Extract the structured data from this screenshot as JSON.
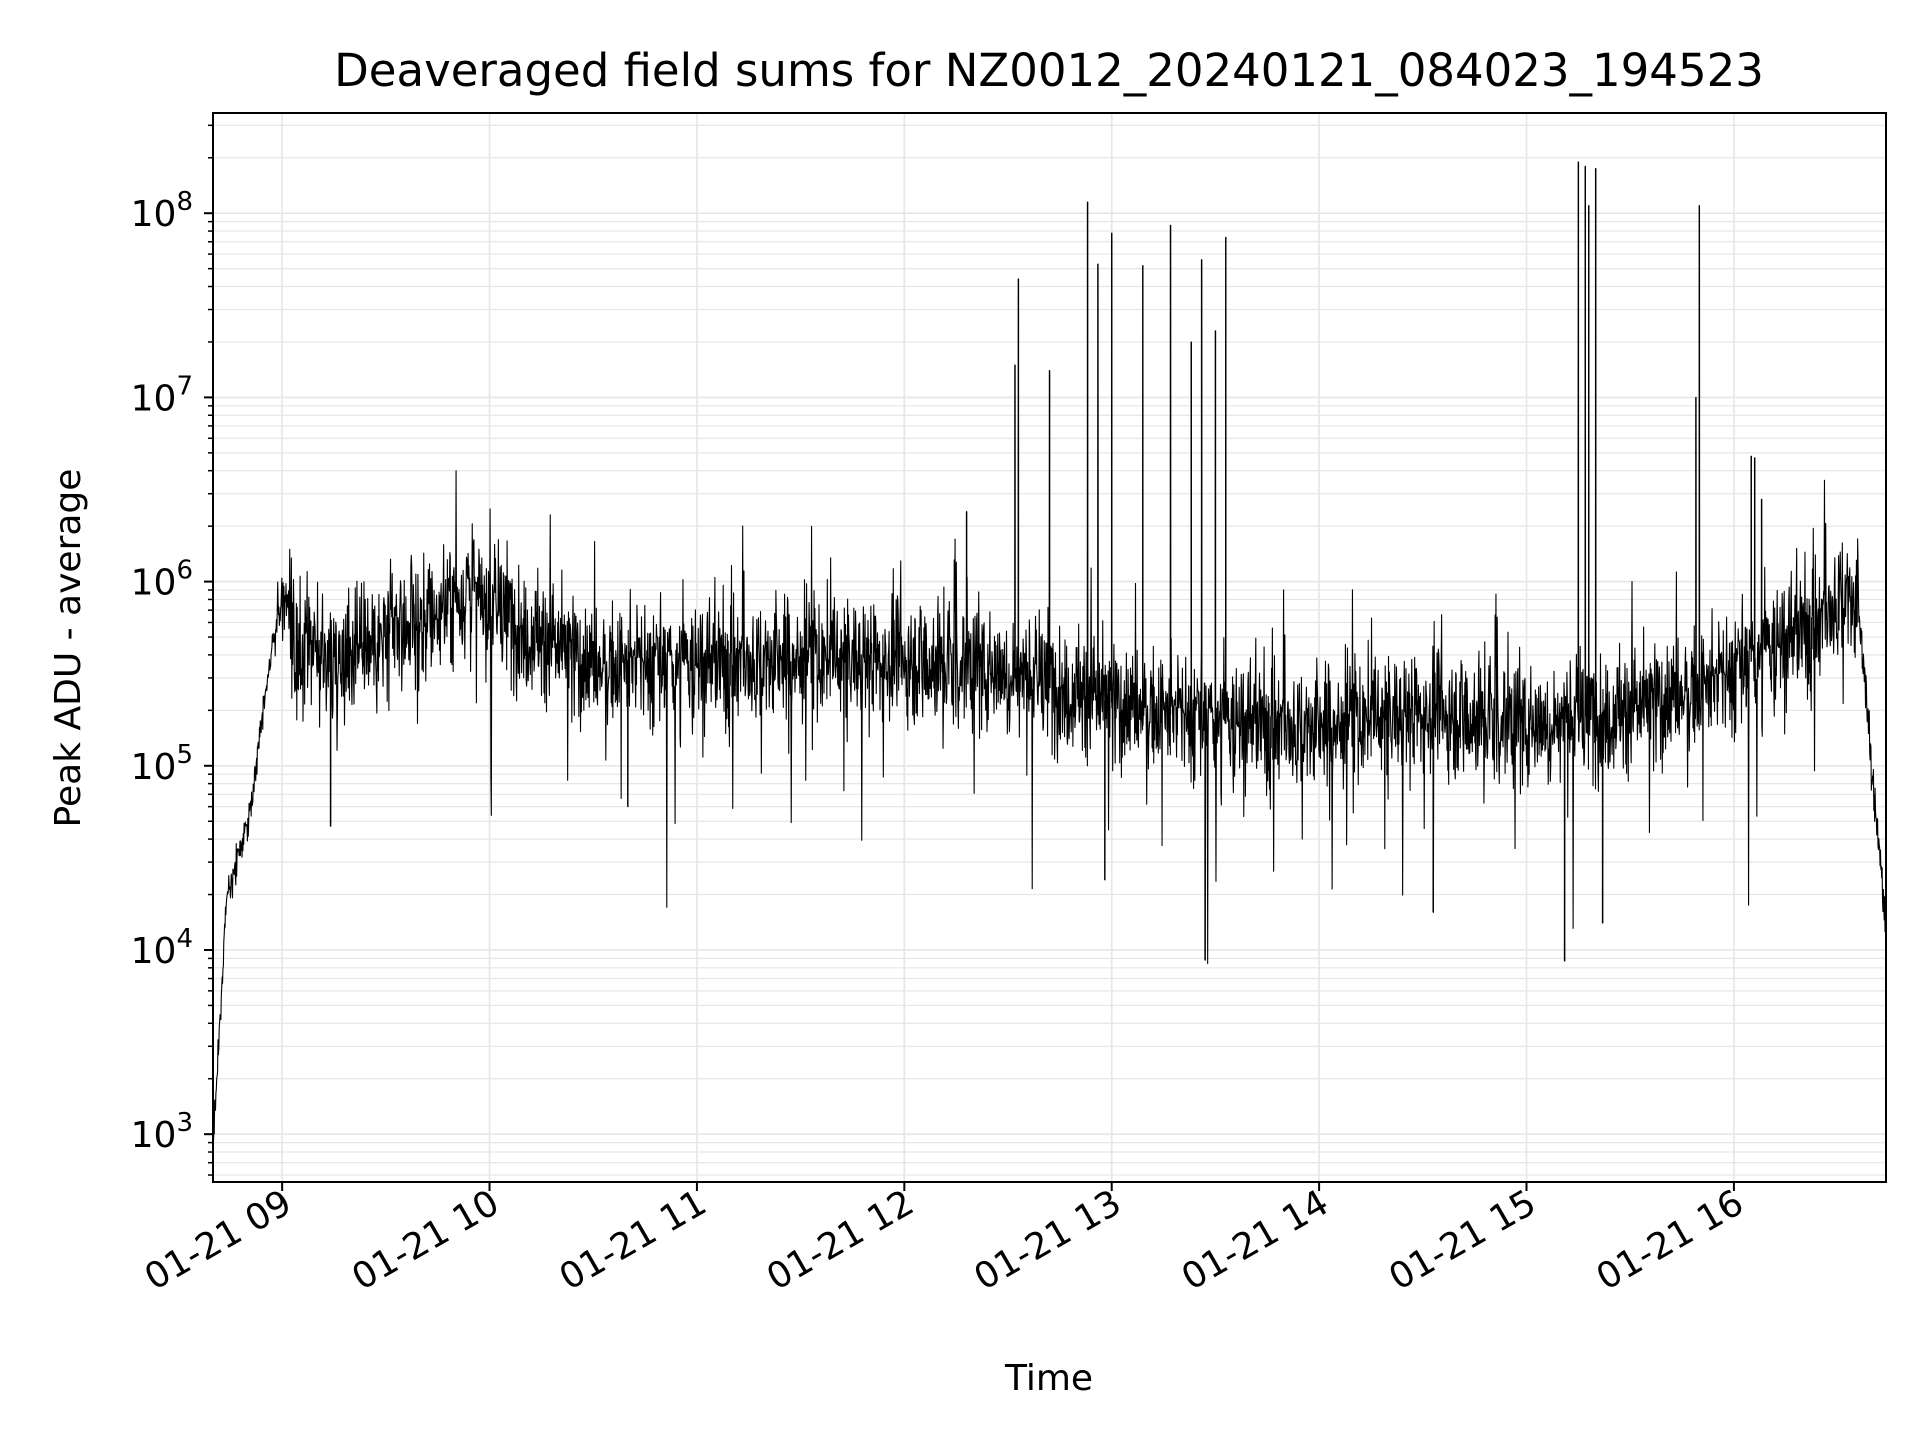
{
  "chart_data": {
    "type": "line",
    "title": "Deaveraged field sums for NZ0012_20240121_084023_194523",
    "xlabel": "Time",
    "ylabel": "Peak ADU - average",
    "yscale": "log",
    "ylim": [
      550,
      350000000
    ],
    "xlim": [
      "2024-01-21 08:40",
      "2024-01-21 16:44"
    ],
    "grid": true,
    "line_color": "#000000",
    "grid_color": "#e6e6e6",
    "x_ticks": [
      {
        "value": "2024-01-21 09:00",
        "label": "01-21 09"
      },
      {
        "value": "2024-01-21 10:00",
        "label": "01-21 10"
      },
      {
        "value": "2024-01-21 11:00",
        "label": "01-21 11"
      },
      {
        "value": "2024-01-21 12:00",
        "label": "01-21 12"
      },
      {
        "value": "2024-01-21 13:00",
        "label": "01-21 13"
      },
      {
        "value": "2024-01-21 14:00",
        "label": "01-21 14"
      },
      {
        "value": "2024-01-21 15:00",
        "label": "01-21 15"
      },
      {
        "value": "2024-01-21 16:00",
        "label": "01-21 16"
      }
    ],
    "y_ticks": [
      {
        "value": 1000,
        "base": "10",
        "exp": "3"
      },
      {
        "value": 10000,
        "base": "10",
        "exp": "4"
      },
      {
        "value": 100000,
        "base": "10",
        "exp": "5"
      },
      {
        "value": 1000000,
        "base": "10",
        "exp": "6"
      },
      {
        "value": 10000000,
        "base": "10",
        "exp": "7"
      },
      {
        "value": 100000000,
        "base": "10",
        "exp": "8"
      }
    ],
    "series": [
      {
        "baseline": [
          [
            "2024-01-21 08:40",
            900
          ],
          [
            "2024-01-21 08:42",
            4000
          ],
          [
            "2024-01-21 08:44",
            20000
          ],
          [
            "2024-01-21 08:47",
            30000
          ],
          [
            "2024-01-21 08:51",
            60000
          ],
          [
            "2024-01-21 08:55",
            250000
          ],
          [
            "2024-01-21 08:59",
            700000
          ],
          [
            "2024-01-21 09:01",
            800000
          ],
          [
            "2024-01-21 09:05",
            350000
          ],
          [
            "2024-01-21 09:30",
            500000
          ],
          [
            "2024-01-21 09:45",
            700000
          ],
          [
            "2024-01-21 09:55",
            900000
          ],
          [
            "2024-01-21 10:10",
            550000
          ],
          [
            "2024-01-21 10:30",
            350000
          ],
          [
            "2024-01-21 11:00",
            350000
          ],
          [
            "2024-01-21 11:30",
            380000
          ],
          [
            "2024-01-21 12:00",
            380000
          ],
          [
            "2024-01-21 12:30",
            330000
          ],
          [
            "2024-01-21 13:00",
            220000
          ],
          [
            "2024-01-21 13:30",
            170000
          ],
          [
            "2024-01-21 14:00",
            160000
          ],
          [
            "2024-01-21 14:30",
            200000
          ],
          [
            "2024-01-21 15:00",
            170000
          ],
          [
            "2024-01-21 15:30",
            200000
          ],
          [
            "2024-01-21 15:55",
            280000
          ],
          [
            "2024-01-21 16:10",
            420000
          ],
          [
            "2024-01-21 16:25",
            600000
          ],
          [
            "2024-01-21 16:32",
            900000
          ],
          [
            "2024-01-21 16:36",
            700000
          ],
          [
            "2024-01-21 16:38",
            300000
          ],
          [
            "2024-01-21 16:40",
            80000
          ],
          [
            "2024-01-21 16:42",
            40000
          ],
          [
            "2024-01-21 16:44",
            12000
          ]
        ],
        "spikes": [
          [
            "2024-01-21 12:18",
            2400000
          ],
          [
            "2024-01-21 12:32",
            15000000
          ],
          [
            "2024-01-21 12:33",
            44000000
          ],
          [
            "2024-01-21 12:42",
            14000000
          ],
          [
            "2024-01-21 12:53",
            115000000
          ],
          [
            "2024-01-21 12:56",
            53000000
          ],
          [
            "2024-01-21 13:00",
            78000000
          ],
          [
            "2024-01-21 13:09",
            52000000
          ],
          [
            "2024-01-21 13:17",
            86000000
          ],
          [
            "2024-01-21 13:23",
            20000000
          ],
          [
            "2024-01-21 13:26",
            56000000
          ],
          [
            "2024-01-21 13:30",
            23000000
          ],
          [
            "2024-01-21 13:33",
            74000000
          ],
          [
            "2024-01-21 15:15",
            190000000
          ],
          [
            "2024-01-21 15:17",
            180000000
          ],
          [
            "2024-01-21 15:18",
            110000000
          ],
          [
            "2024-01-21 15:20",
            175000000
          ],
          [
            "2024-01-21 15:49",
            10000000
          ],
          [
            "2024-01-21 15:50",
            110000000
          ],
          [
            "2024-01-21 16:05",
            4800000
          ],
          [
            "2024-01-21 16:06",
            4700000
          ],
          [
            "2024-01-21 16:08",
            2800000
          ]
        ],
        "dips": [
          [
            "2024-01-21 13:27",
            8800
          ],
          [
            "2024-01-21 15:11",
            8700
          ],
          [
            "2024-01-21 15:22",
            14000
          ],
          [
            "2024-01-21 14:33",
            16000
          ],
          [
            "2024-01-21 12:58",
            24000
          ],
          [
            "2024-01-21 09:14",
            47000
          ],
          [
            "2024-01-21 10:40",
            60000
          ]
        ]
      }
    ]
  }
}
